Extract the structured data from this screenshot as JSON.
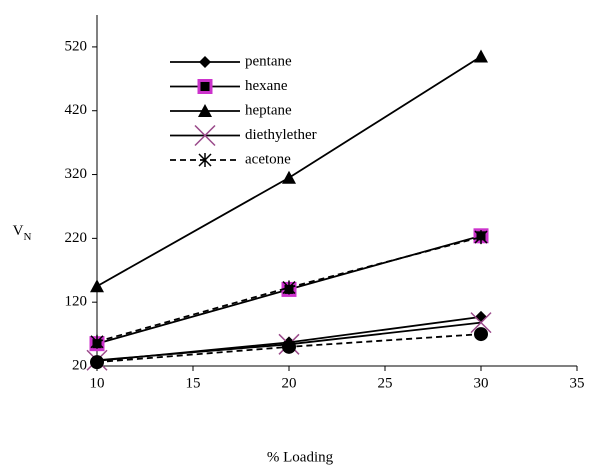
{
  "chart_data": {
    "type": "line",
    "xlabel": "% Loading",
    "ylabel": "V",
    "ylabel_subscript": "N",
    "xlim": [
      10,
      35
    ],
    "xticks": [
      10,
      15,
      20,
      25,
      30,
      35
    ],
    "ylim": [
      20,
      570
    ],
    "yticks": [
      20,
      120,
      220,
      320,
      420,
      520
    ],
    "x": [
      10,
      20,
      30
    ],
    "series": [
      {
        "name": "pentane",
        "color": "#000000",
        "marker": "diamond",
        "dash": false,
        "values": [
          28,
          57,
          97
        ]
      },
      {
        "name": "hexane",
        "color": "#000000",
        "marker": "square",
        "marker_color": "#cc33cc",
        "dash": false,
        "values": [
          55,
          140,
          224
        ]
      },
      {
        "name": "heptane",
        "color": "#000000",
        "marker": "triangle",
        "dash": false,
        "values": [
          145,
          315,
          505
        ]
      },
      {
        "name": "diethylether",
        "color": "#000000",
        "marker": "x",
        "dash": false,
        "values": [
          29,
          54,
          88
        ]
      },
      {
        "name": "acetone",
        "color": "#000000",
        "marker": "star",
        "dash": true,
        "values": [
          58,
          143,
          222
        ]
      },
      {
        "color": "#000000",
        "marker": "circle",
        "dash": true,
        "values": [
          26,
          50,
          70
        ]
      }
    ]
  }
}
